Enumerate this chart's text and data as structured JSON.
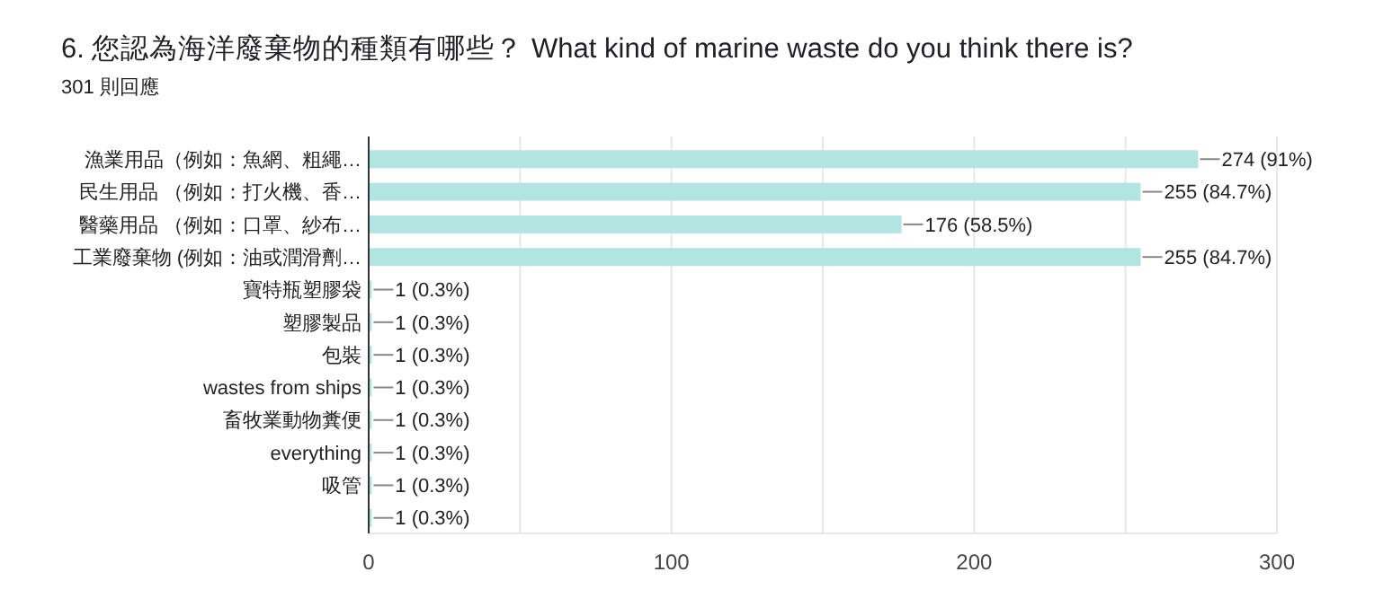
{
  "chart_data": {
    "type": "bar",
    "orientation": "horizontal",
    "title": "6. 您認為海洋廢棄物的種類有哪些？ What kind of marine waste do you think there is?",
    "subtitle": "301 則回應",
    "categories": [
      "漁業用品（例如：魚網、粗繩…",
      "民生用品 （例如：打火機、香…",
      "醫藥用品 （例如：口罩、紗布…",
      "工業廢棄物 (例如：油或潤滑劑…",
      "寶特瓶塑膠袋",
      "塑膠製品",
      "包裝",
      "wastes from ships",
      "畜牧業動物糞便",
      "everything",
      "吸管",
      null
    ],
    "values": [
      274,
      255,
      176,
      255,
      1,
      1,
      1,
      1,
      1,
      1,
      1,
      1
    ],
    "value_labels": [
      "274 (91%)",
      "255 (84.7%)",
      "176 (58.5%)",
      "255 (84.7%)",
      "1 (0.3%)",
      "1 (0.3%)",
      "1 (0.3%)",
      "1 (0.3%)",
      "1 (0.3%)",
      "1 (0.3%)",
      "1 (0.3%)",
      "1 (0.3%)"
    ],
    "color": "#b2e5e2",
    "xlim": [
      0,
      300
    ],
    "xticks": [
      0,
      {
        "value": 50,
        "label": null
      },
      100,
      {
        "value": 150,
        "label": null
      },
      200,
      {
        "value": 250,
        "label": null
      },
      300
    ],
    "grid": true
  }
}
